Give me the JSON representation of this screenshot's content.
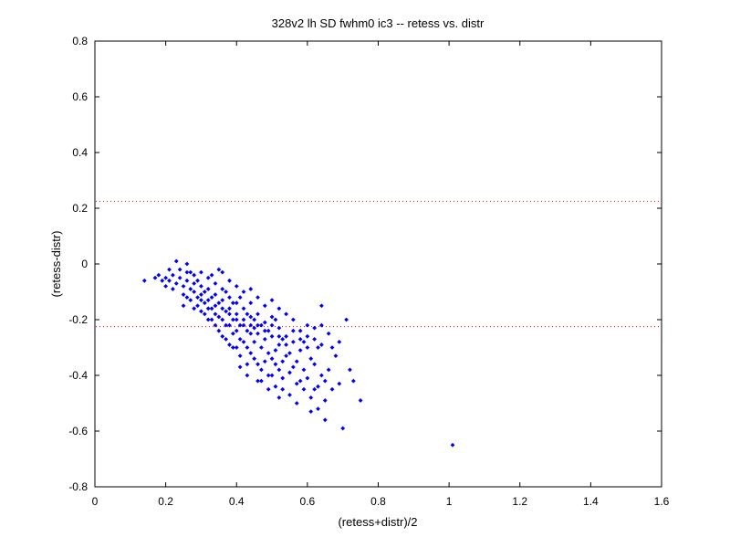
{
  "chart_data": {
    "type": "scatter",
    "title": "328v2 lh SD fwhm0 ic3 -- retess vs. distr",
    "xlabel": "(retess+distr)/2",
    "ylabel": "(retess-distr)",
    "xlim": [
      0,
      1.6
    ],
    "ylim": [
      -0.8,
      0.8
    ],
    "x_ticks": [
      "0",
      "0.2",
      "0.4",
      "0.6",
      "0.8",
      "1",
      "1.2",
      "1.4",
      "1.6"
    ],
    "y_ticks": [
      "-0.8",
      "-0.6",
      "-0.4",
      "-0.2",
      "0",
      "0.2",
      "0.4",
      "0.6",
      "0.8"
    ],
    "grid": false,
    "reference_lines": [
      {
        "y": 0.225,
        "style": "dotted",
        "color": "#ff0000"
      },
      {
        "y": -0.225,
        "style": "dotted",
        "color": "#ff0000"
      }
    ],
    "series": [
      {
        "color": "#0000ff",
        "marker": "dot",
        "points": [
          [
            0.14,
            -0.06
          ],
          [
            0.17,
            -0.05
          ],
          [
            0.18,
            -0.04
          ],
          [
            0.19,
            -0.06
          ],
          [
            0.2,
            -0.05
          ],
          [
            0.2,
            -0.08
          ],
          [
            0.21,
            -0.06
          ],
          [
            0.22,
            -0.04
          ],
          [
            0.22,
            -0.09
          ],
          [
            0.23,
            -0.07
          ],
          [
            0.23,
            0.01
          ],
          [
            0.24,
            -0.02
          ],
          [
            0.24,
            -0.05
          ],
          [
            0.25,
            -0.08
          ],
          [
            0.25,
            -0.11
          ],
          [
            0.26,
            0.0
          ],
          [
            0.26,
            -0.03
          ],
          [
            0.26,
            -0.06
          ],
          [
            0.27,
            -0.09
          ],
          [
            0.27,
            -0.13
          ],
          [
            0.28,
            -0.04
          ],
          [
            0.28,
            -0.07
          ],
          [
            0.28,
            -0.1
          ],
          [
            0.29,
            -0.15
          ],
          [
            0.29,
            -0.12
          ],
          [
            0.3,
            -0.03
          ],
          [
            0.3,
            -0.08
          ],
          [
            0.3,
            -0.11
          ],
          [
            0.31,
            -0.14
          ],
          [
            0.31,
            -0.18
          ],
          [
            0.32,
            -0.05
          ],
          [
            0.32,
            -0.09
          ],
          [
            0.32,
            -0.13
          ],
          [
            0.33,
            -0.16
          ],
          [
            0.33,
            -0.2
          ],
          [
            0.34,
            -0.07
          ],
          [
            0.34,
            -0.11
          ],
          [
            0.34,
            -0.15
          ],
          [
            0.35,
            -0.19
          ],
          [
            0.35,
            -0.24
          ],
          [
            0.36,
            -0.03
          ],
          [
            0.36,
            -0.09
          ],
          [
            0.36,
            -0.13
          ],
          [
            0.37,
            -0.17
          ],
          [
            0.37,
            -0.22
          ],
          [
            0.37,
            -0.27
          ],
          [
            0.38,
            -0.06
          ],
          [
            0.38,
            -0.12
          ],
          [
            0.38,
            -0.16
          ],
          [
            0.39,
            -0.2
          ],
          [
            0.39,
            -0.25
          ],
          [
            0.39,
            -0.3
          ],
          [
            0.4,
            -0.08
          ],
          [
            0.4,
            -0.14
          ],
          [
            0.4,
            -0.18
          ],
          [
            0.41,
            -0.22
          ],
          [
            0.41,
            -0.27
          ],
          [
            0.41,
            -0.33
          ],
          [
            0.42,
            -0.1
          ],
          [
            0.42,
            -0.16
          ],
          [
            0.42,
            -0.2
          ],
          [
            0.43,
            -0.24
          ],
          [
            0.43,
            -0.3
          ],
          [
            0.43,
            -0.36
          ],
          [
            0.44,
            -0.09
          ],
          [
            0.44,
            -0.14
          ],
          [
            0.44,
            -0.19
          ],
          [
            0.45,
            -0.23
          ],
          [
            0.45,
            -0.28
          ],
          [
            0.45,
            -0.34
          ],
          [
            0.46,
            -0.12
          ],
          [
            0.46,
            -0.18
          ],
          [
            0.46,
            -0.25
          ],
          [
            0.47,
            -0.3
          ],
          [
            0.47,
            -0.38
          ],
          [
            0.47,
            -0.42
          ],
          [
            0.48,
            -0.15
          ],
          [
            0.48,
            -0.21
          ],
          [
            0.48,
            -0.27
          ],
          [
            0.49,
            -0.32
          ],
          [
            0.49,
            -0.4
          ],
          [
            0.5,
            -0.13
          ],
          [
            0.5,
            -0.19
          ],
          [
            0.5,
            -0.26
          ],
          [
            0.51,
            -0.31
          ],
          [
            0.51,
            -0.36
          ],
          [
            0.51,
            -0.44
          ],
          [
            0.52,
            -0.16
          ],
          [
            0.52,
            -0.23
          ],
          [
            0.52,
            -0.29
          ],
          [
            0.53,
            -0.35
          ],
          [
            0.53,
            -0.41
          ],
          [
            0.54,
            -0.18
          ],
          [
            0.54,
            -0.26
          ],
          [
            0.54,
            -0.33
          ],
          [
            0.55,
            -0.39
          ],
          [
            0.55,
            -0.47
          ],
          [
            0.56,
            -0.2
          ],
          [
            0.56,
            -0.28
          ],
          [
            0.56,
            -0.37
          ],
          [
            0.57,
            -0.43
          ],
          [
            0.57,
            -0.5
          ],
          [
            0.58,
            -0.24
          ],
          [
            0.58,
            -0.31
          ],
          [
            0.59,
            -0.38
          ],
          [
            0.59,
            -0.45
          ],
          [
            0.6,
            -0.22
          ],
          [
            0.6,
            -0.3
          ],
          [
            0.6,
            -0.41
          ],
          [
            0.61,
            -0.48
          ],
          [
            0.61,
            -0.53
          ],
          [
            0.62,
            -0.27
          ],
          [
            0.62,
            -0.36
          ],
          [
            0.63,
            -0.44
          ],
          [
            0.63,
            -0.52
          ],
          [
            0.64,
            -0.15
          ],
          [
            0.64,
            -0.29
          ],
          [
            0.64,
            -0.4
          ],
          [
            0.65,
            -0.49
          ],
          [
            0.65,
            -0.56
          ],
          [
            0.66,
            -0.25
          ],
          [
            0.66,
            -0.38
          ],
          [
            0.67,
            -0.45
          ],
          [
            0.68,
            -0.33
          ],
          [
            0.69,
            -0.43
          ],
          [
            0.69,
            -0.28
          ],
          [
            0.7,
            -0.59
          ],
          [
            0.71,
            -0.2
          ],
          [
            0.72,
            -0.38
          ],
          [
            0.73,
            -0.42
          ],
          [
            0.75,
            -0.49
          ],
          [
            1.01,
            -0.65
          ],
          [
            0.21,
            -0.02
          ],
          [
            0.25,
            -0.15
          ],
          [
            0.27,
            -0.03
          ],
          [
            0.29,
            -0.06
          ],
          [
            0.31,
            -0.1
          ],
          [
            0.33,
            -0.04
          ],
          [
            0.33,
            -0.12
          ],
          [
            0.35,
            -0.02
          ],
          [
            0.35,
            -0.14
          ],
          [
            0.36,
            -0.2
          ],
          [
            0.37,
            -0.1
          ],
          [
            0.38,
            -0.22
          ],
          [
            0.39,
            -0.14
          ],
          [
            0.4,
            -0.24
          ],
          [
            0.4,
            -0.3
          ],
          [
            0.41,
            -0.12
          ],
          [
            0.42,
            -0.28
          ],
          [
            0.43,
            -0.18
          ],
          [
            0.44,
            -0.25
          ],
          [
            0.44,
            -0.32
          ],
          [
            0.45,
            -0.2
          ],
          [
            0.46,
            -0.36
          ],
          [
            0.47,
            -0.22
          ],
          [
            0.48,
            -0.35
          ],
          [
            0.49,
            -0.24
          ],
          [
            0.5,
            -0.34
          ],
          [
            0.5,
            -0.4
          ],
          [
            0.51,
            -0.2
          ],
          [
            0.52,
            -0.38
          ],
          [
            0.53,
            -0.27
          ],
          [
            0.53,
            -0.45
          ],
          [
            0.55,
            -0.32
          ],
          [
            0.57,
            -0.35
          ],
          [
            0.58,
            -0.42
          ],
          [
            0.59,
            -0.28
          ],
          [
            0.61,
            -0.34
          ],
          [
            0.62,
            -0.45
          ],
          [
            0.63,
            -0.3
          ],
          [
            0.65,
            -0.42
          ],
          [
            0.67,
            -0.3
          ],
          [
            0.3,
            -0.17
          ],
          [
            0.32,
            -0.2
          ],
          [
            0.34,
            -0.22
          ],
          [
            0.36,
            -0.26
          ],
          [
            0.38,
            -0.29
          ],
          [
            0.41,
            -0.37
          ],
          [
            0.43,
            -0.4
          ],
          [
            0.46,
            -0.42
          ],
          [
            0.49,
            -0.45
          ],
          [
            0.52,
            -0.48
          ],
          [
            0.26,
            -0.12
          ],
          [
            0.28,
            -0.16
          ],
          [
            0.3,
            -0.13
          ],
          [
            0.32,
            -0.16
          ],
          [
            0.34,
            -0.18
          ],
          [
            0.36,
            -0.16
          ],
          [
            0.38,
            -0.18
          ],
          [
            0.4,
            -0.2
          ],
          [
            0.42,
            -0.22
          ],
          [
            0.44,
            -0.22
          ],
          [
            0.46,
            -0.22
          ],
          [
            0.48,
            -0.24
          ],
          [
            0.5,
            -0.22
          ],
          [
            0.52,
            -0.26
          ],
          [
            0.54,
            -0.29
          ],
          [
            0.56,
            -0.24
          ],
          [
            0.58,
            -0.27
          ],
          [
            0.6,
            -0.26
          ],
          [
            0.62,
            -0.23
          ],
          [
            0.64,
            -0.22
          ]
        ]
      }
    ]
  }
}
